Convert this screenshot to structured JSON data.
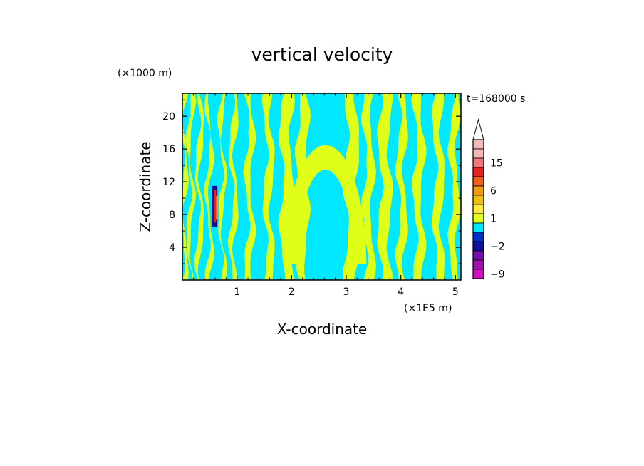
{
  "chart_data": {
    "type": "heatmap",
    "title": "vertical velocity",
    "xlabel": "X-coordinate",
    "ylabel": "Z-coordinate",
    "x_unit": "(×1E5 m)",
    "y_unit": "(×1000 m)",
    "time_label": "t=168000 s",
    "xlim": [
      0,
      5.1
    ],
    "ylim": [
      0,
      22.8
    ],
    "xticks": [
      "1",
      "2",
      "3",
      "4",
      "5"
    ],
    "xtick_values": [
      1,
      2,
      3,
      4,
      5
    ],
    "yticks": [
      "4",
      "8",
      "12",
      "16",
      "20"
    ],
    "ytick_values": [
      4,
      8,
      12,
      16,
      20
    ],
    "colorbar": {
      "labels": [
        "15",
        "6",
        "1",
        "−2",
        "−9"
      ],
      "label_values": [
        15,
        6,
        1,
        -2,
        -9
      ],
      "levels": [
        {
          "value": 22,
          "color": "#f5b8b8"
        },
        {
          "value": 18,
          "color": "#f5b8b8"
        },
        {
          "value": 15,
          "color": "#f07878"
        },
        {
          "value": 12,
          "color": "#e8221c"
        },
        {
          "value": 9,
          "color": "#f06018"
        },
        {
          "value": 6,
          "color": "#f49a10"
        },
        {
          "value": 3,
          "color": "#f0c010"
        },
        {
          "value": 2,
          "color": "#ffe840"
        },
        {
          "value": 1,
          "color": "#e0ff18"
        },
        {
          "value": 0,
          "color": "#00e8ff"
        },
        {
          "value": -1,
          "color": "#0030c8"
        },
        {
          "value": -2,
          "color": "#1010a0"
        },
        {
          "value": -4,
          "color": "#7010b0"
        },
        {
          "value": -6,
          "color": "#a010b0"
        },
        {
          "value": -9,
          "color": "#d010c0"
        }
      ],
      "extend": "max"
    },
    "field_colors": {
      "positive": "#e0ff18",
      "negative": "#00e8ff"
    },
    "bands_positive": [
      {
        "x0": 0.0,
        "x1": 0.06
      },
      {
        "x0": 0.12,
        "x1": 0.18
      },
      {
        "x0": 0.28,
        "x1": 0.35
      },
      {
        "x0": 0.46,
        "x1": 0.52
      },
      {
        "x0": 0.7,
        "x1": 0.76
      },
      {
        "x0": 0.9,
        "x1": 0.98
      },
      {
        "x0": 1.18,
        "x1": 1.28
      },
      {
        "x0": 1.52,
        "x1": 1.64
      },
      {
        "x0": 1.82,
        "x1": 2.0
      },
      {
        "x0": 2.12,
        "x1": 2.28
      },
      {
        "x0": 3.0,
        "x1": 3.2
      },
      {
        "x0": 3.34,
        "x1": 3.48
      },
      {
        "x0": 3.62,
        "x1": 3.8
      },
      {
        "x0": 3.96,
        "x1": 4.08
      },
      {
        "x0": 4.26,
        "x1": 4.4
      },
      {
        "x0": 4.62,
        "x1": 4.76
      },
      {
        "x0": 4.92,
        "x1": 5.04
      }
    ],
    "strong_anomaly": {
      "x": 0.59,
      "z0": 6.5,
      "z1": 11.5,
      "min": -9,
      "max": 15
    }
  }
}
